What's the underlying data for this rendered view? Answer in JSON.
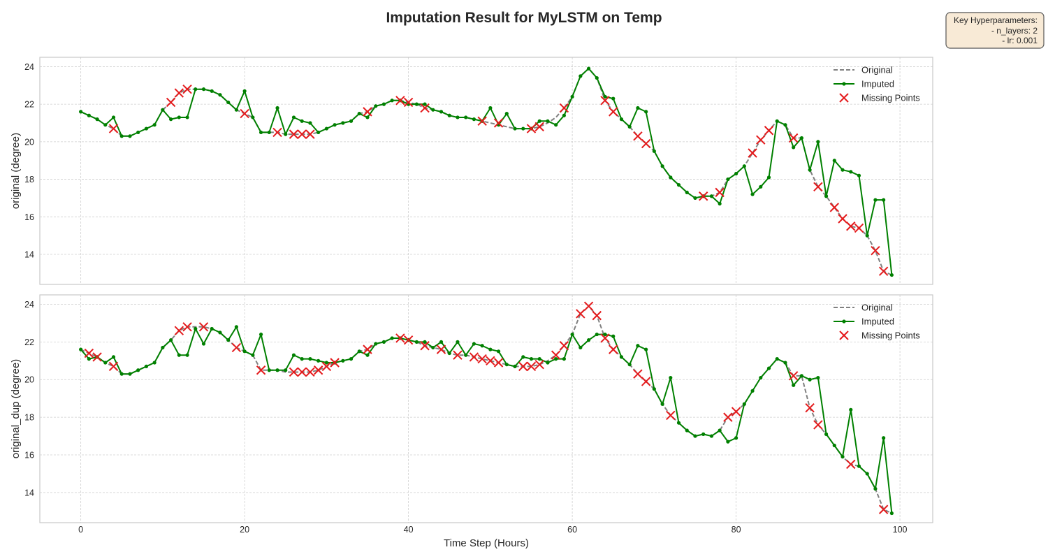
{
  "chart_data": {
    "type": "line",
    "title": "Imputation Result for MyLSTM on Temp",
    "hyperparams": {
      "heading": "Key Hyperparameters:",
      "lines": [
        "- n_layers: 2",
        "- lr: 0.001"
      ]
    },
    "xlabel": "Time Step (Hours)",
    "xlim": [
      -5,
      104
    ],
    "xticks": [
      0,
      20,
      40,
      60,
      80,
      100
    ],
    "colors": {
      "original": "#808080",
      "imputed": "#008000",
      "missing": "#e41a1c"
    },
    "legend": {
      "placement": "top-right",
      "entries": [
        "Original",
        "Imputed",
        "Missing Points"
      ]
    },
    "panels": [
      {
        "ylabel": "original (degree)",
        "ylim": [
          12.4,
          24.5
        ],
        "yticks": [
          14,
          16,
          18,
          20,
          22,
          24
        ],
        "original": [
          21.6,
          21.4,
          21.2,
          20.9,
          20.7,
          20.3,
          20.3,
          20.5,
          20.7,
          20.9,
          21.7,
          22.1,
          22.6,
          22.8,
          22.8,
          22.8,
          22.7,
          22.5,
          22.1,
          21.7,
          21.5,
          21.3,
          20.5,
          20.5,
          20.5,
          20.4,
          20.4,
          20.4,
          20.4,
          20.5,
          20.7,
          20.9,
          21.0,
          21.1,
          21.5,
          21.6,
          21.9,
          22.0,
          22.2,
          22.2,
          22.1,
          22.0,
          21.8,
          21.7,
          21.6,
          21.4,
          21.3,
          21.3,
          21.2,
          21.1,
          21.0,
          20.9,
          20.8,
          20.7,
          20.7,
          20.7,
          20.8,
          21.0,
          21.3,
          21.8,
          22.4,
          23.5,
          23.9,
          23.4,
          22.2,
          21.6,
          21.2,
          20.8,
          20.3,
          19.9,
          19.5,
          18.7,
          18.1,
          17.7,
          17.3,
          17.0,
          17.1,
          17.1,
          17.3,
          18.0,
          18.3,
          18.7,
          19.4,
          20.1,
          20.6,
          21.1,
          20.9,
          20.2,
          20.2,
          18.5,
          17.6,
          17.1,
          16.5,
          15.9,
          15.5,
          15.4,
          15.0,
          14.2,
          13.1,
          12.9
        ],
        "imputed": [
          21.6,
          21.4,
          21.2,
          20.9,
          21.3,
          20.3,
          20.3,
          20.5,
          20.7,
          20.9,
          21.7,
          21.2,
          21.3,
          21.3,
          22.8,
          22.8,
          22.7,
          22.5,
          22.1,
          21.7,
          22.7,
          21.3,
          20.5,
          20.5,
          21.8,
          20.4,
          21.3,
          21.1,
          21.0,
          20.5,
          20.7,
          20.9,
          21.0,
          21.1,
          21.5,
          21.3,
          21.9,
          22.0,
          22.2,
          22.2,
          22.0,
          22.0,
          22.0,
          21.7,
          21.6,
          21.4,
          21.3,
          21.3,
          21.2,
          21.1,
          21.8,
          20.9,
          21.5,
          20.7,
          20.7,
          20.7,
          21.1,
          21.1,
          20.9,
          21.4,
          22.4,
          23.5,
          23.9,
          23.4,
          22.4,
          22.3,
          21.2,
          20.8,
          21.8,
          21.6,
          19.5,
          18.7,
          18.1,
          17.7,
          17.3,
          17.0,
          17.1,
          17.1,
          16.7,
          18.0,
          18.3,
          18.7,
          17.2,
          17.6,
          18.1,
          21.1,
          20.9,
          19.7,
          20.2,
          18.5,
          20.0,
          17.1,
          19.0,
          18.5,
          18.4,
          18.2,
          15.0,
          16.9,
          16.9,
          12.9
        ],
        "missing_x": [
          4,
          11,
          12,
          13,
          20,
          24,
          26,
          27,
          28,
          35,
          39,
          40,
          42,
          49,
          51,
          55,
          56,
          59,
          64,
          65,
          68,
          69,
          76,
          78,
          82,
          83,
          84,
          87,
          90,
          92,
          93,
          94,
          95,
          97,
          98
        ],
        "missing_y": [
          20.7,
          22.1,
          22.6,
          22.8,
          21.5,
          20.5,
          20.4,
          20.4,
          20.4,
          21.6,
          22.2,
          22.1,
          21.8,
          21.1,
          21.0,
          20.7,
          20.8,
          21.8,
          22.2,
          21.6,
          20.3,
          19.9,
          17.1,
          17.3,
          19.4,
          20.1,
          20.6,
          20.2,
          17.6,
          16.5,
          15.9,
          15.5,
          15.4,
          14.2,
          13.1
        ]
      },
      {
        "ylabel": "original_dup (degree)",
        "ylim": [
          12.4,
          24.5
        ],
        "yticks": [
          14,
          16,
          18,
          20,
          22,
          24
        ],
        "original": [
          21.6,
          21.4,
          21.2,
          20.9,
          20.7,
          20.3,
          20.3,
          20.5,
          20.7,
          20.9,
          21.7,
          22.1,
          22.6,
          22.8,
          22.8,
          22.8,
          22.7,
          22.5,
          22.1,
          21.7,
          21.5,
          21.3,
          20.5,
          20.5,
          20.5,
          20.4,
          20.4,
          20.4,
          20.4,
          20.5,
          20.7,
          20.9,
          21.0,
          21.1,
          21.5,
          21.6,
          21.9,
          22.0,
          22.2,
          22.2,
          22.1,
          22.0,
          21.8,
          21.7,
          21.6,
          21.4,
          21.3,
          21.3,
          21.2,
          21.1,
          21.0,
          20.9,
          20.8,
          20.7,
          20.7,
          20.7,
          20.8,
          21.0,
          21.3,
          21.8,
          22.4,
          23.5,
          23.9,
          23.4,
          22.2,
          21.6,
          21.2,
          20.8,
          20.3,
          19.9,
          19.5,
          18.7,
          18.1,
          17.7,
          17.3,
          17.0,
          17.1,
          17.0,
          17.3,
          18.0,
          18.3,
          18.7,
          19.4,
          20.1,
          20.6,
          21.1,
          20.9,
          20.2,
          20.2,
          18.5,
          17.6,
          17.1,
          16.5,
          15.9,
          15.5,
          15.4,
          15.0,
          14.2,
          13.1,
          12.9
        ],
        "imputed": [
          21.6,
          21.1,
          21.2,
          20.9,
          21.2,
          20.3,
          20.3,
          20.5,
          20.7,
          20.9,
          21.7,
          22.1,
          21.3,
          21.3,
          22.7,
          21.9,
          22.7,
          22.5,
          22.1,
          22.8,
          21.5,
          21.3,
          22.4,
          20.5,
          20.5,
          20.5,
          21.3,
          21.1,
          21.1,
          21.0,
          20.9,
          20.9,
          21.0,
          21.1,
          21.5,
          21.3,
          21.9,
          22.0,
          22.2,
          22.2,
          22.1,
          22.0,
          22.0,
          21.7,
          22.0,
          21.4,
          22.0,
          21.3,
          21.9,
          21.8,
          21.6,
          21.5,
          20.8,
          20.7,
          21.2,
          21.1,
          21.1,
          20.9,
          21.1,
          21.1,
          22.4,
          21.7,
          22.1,
          22.4,
          22.4,
          22.3,
          21.2,
          20.8,
          21.8,
          21.6,
          19.5,
          18.7,
          20.1,
          17.7,
          17.3,
          17.0,
          17.1,
          17.0,
          17.3,
          16.7,
          16.9,
          18.7,
          19.4,
          20.1,
          20.6,
          21.1,
          20.9,
          19.7,
          20.2,
          20.0,
          20.1,
          17.1,
          16.5,
          15.9,
          18.4,
          15.4,
          15.0,
          14.2,
          16.9,
          12.9
        ],
        "missing_x": [
          1,
          2,
          4,
          12,
          13,
          15,
          19,
          22,
          26,
          27,
          28,
          29,
          30,
          31,
          35,
          39,
          40,
          42,
          44,
          46,
          48,
          49,
          50,
          51,
          54,
          55,
          56,
          58,
          59,
          61,
          62,
          63,
          64,
          65,
          68,
          69,
          72,
          79,
          80,
          87,
          89,
          90,
          94,
          98
        ],
        "missing_y": [
          21.4,
          21.2,
          20.7,
          22.6,
          22.8,
          22.8,
          21.7,
          20.5,
          20.4,
          20.4,
          20.4,
          20.5,
          20.7,
          20.9,
          21.6,
          22.2,
          22.1,
          21.8,
          21.6,
          21.3,
          21.2,
          21.1,
          21.0,
          20.9,
          20.7,
          20.7,
          20.8,
          21.3,
          21.8,
          23.5,
          23.9,
          23.4,
          22.2,
          21.6,
          20.3,
          19.9,
          18.1,
          18.0,
          18.3,
          20.2,
          18.5,
          17.6,
          15.5,
          13.1
        ]
      }
    ]
  }
}
